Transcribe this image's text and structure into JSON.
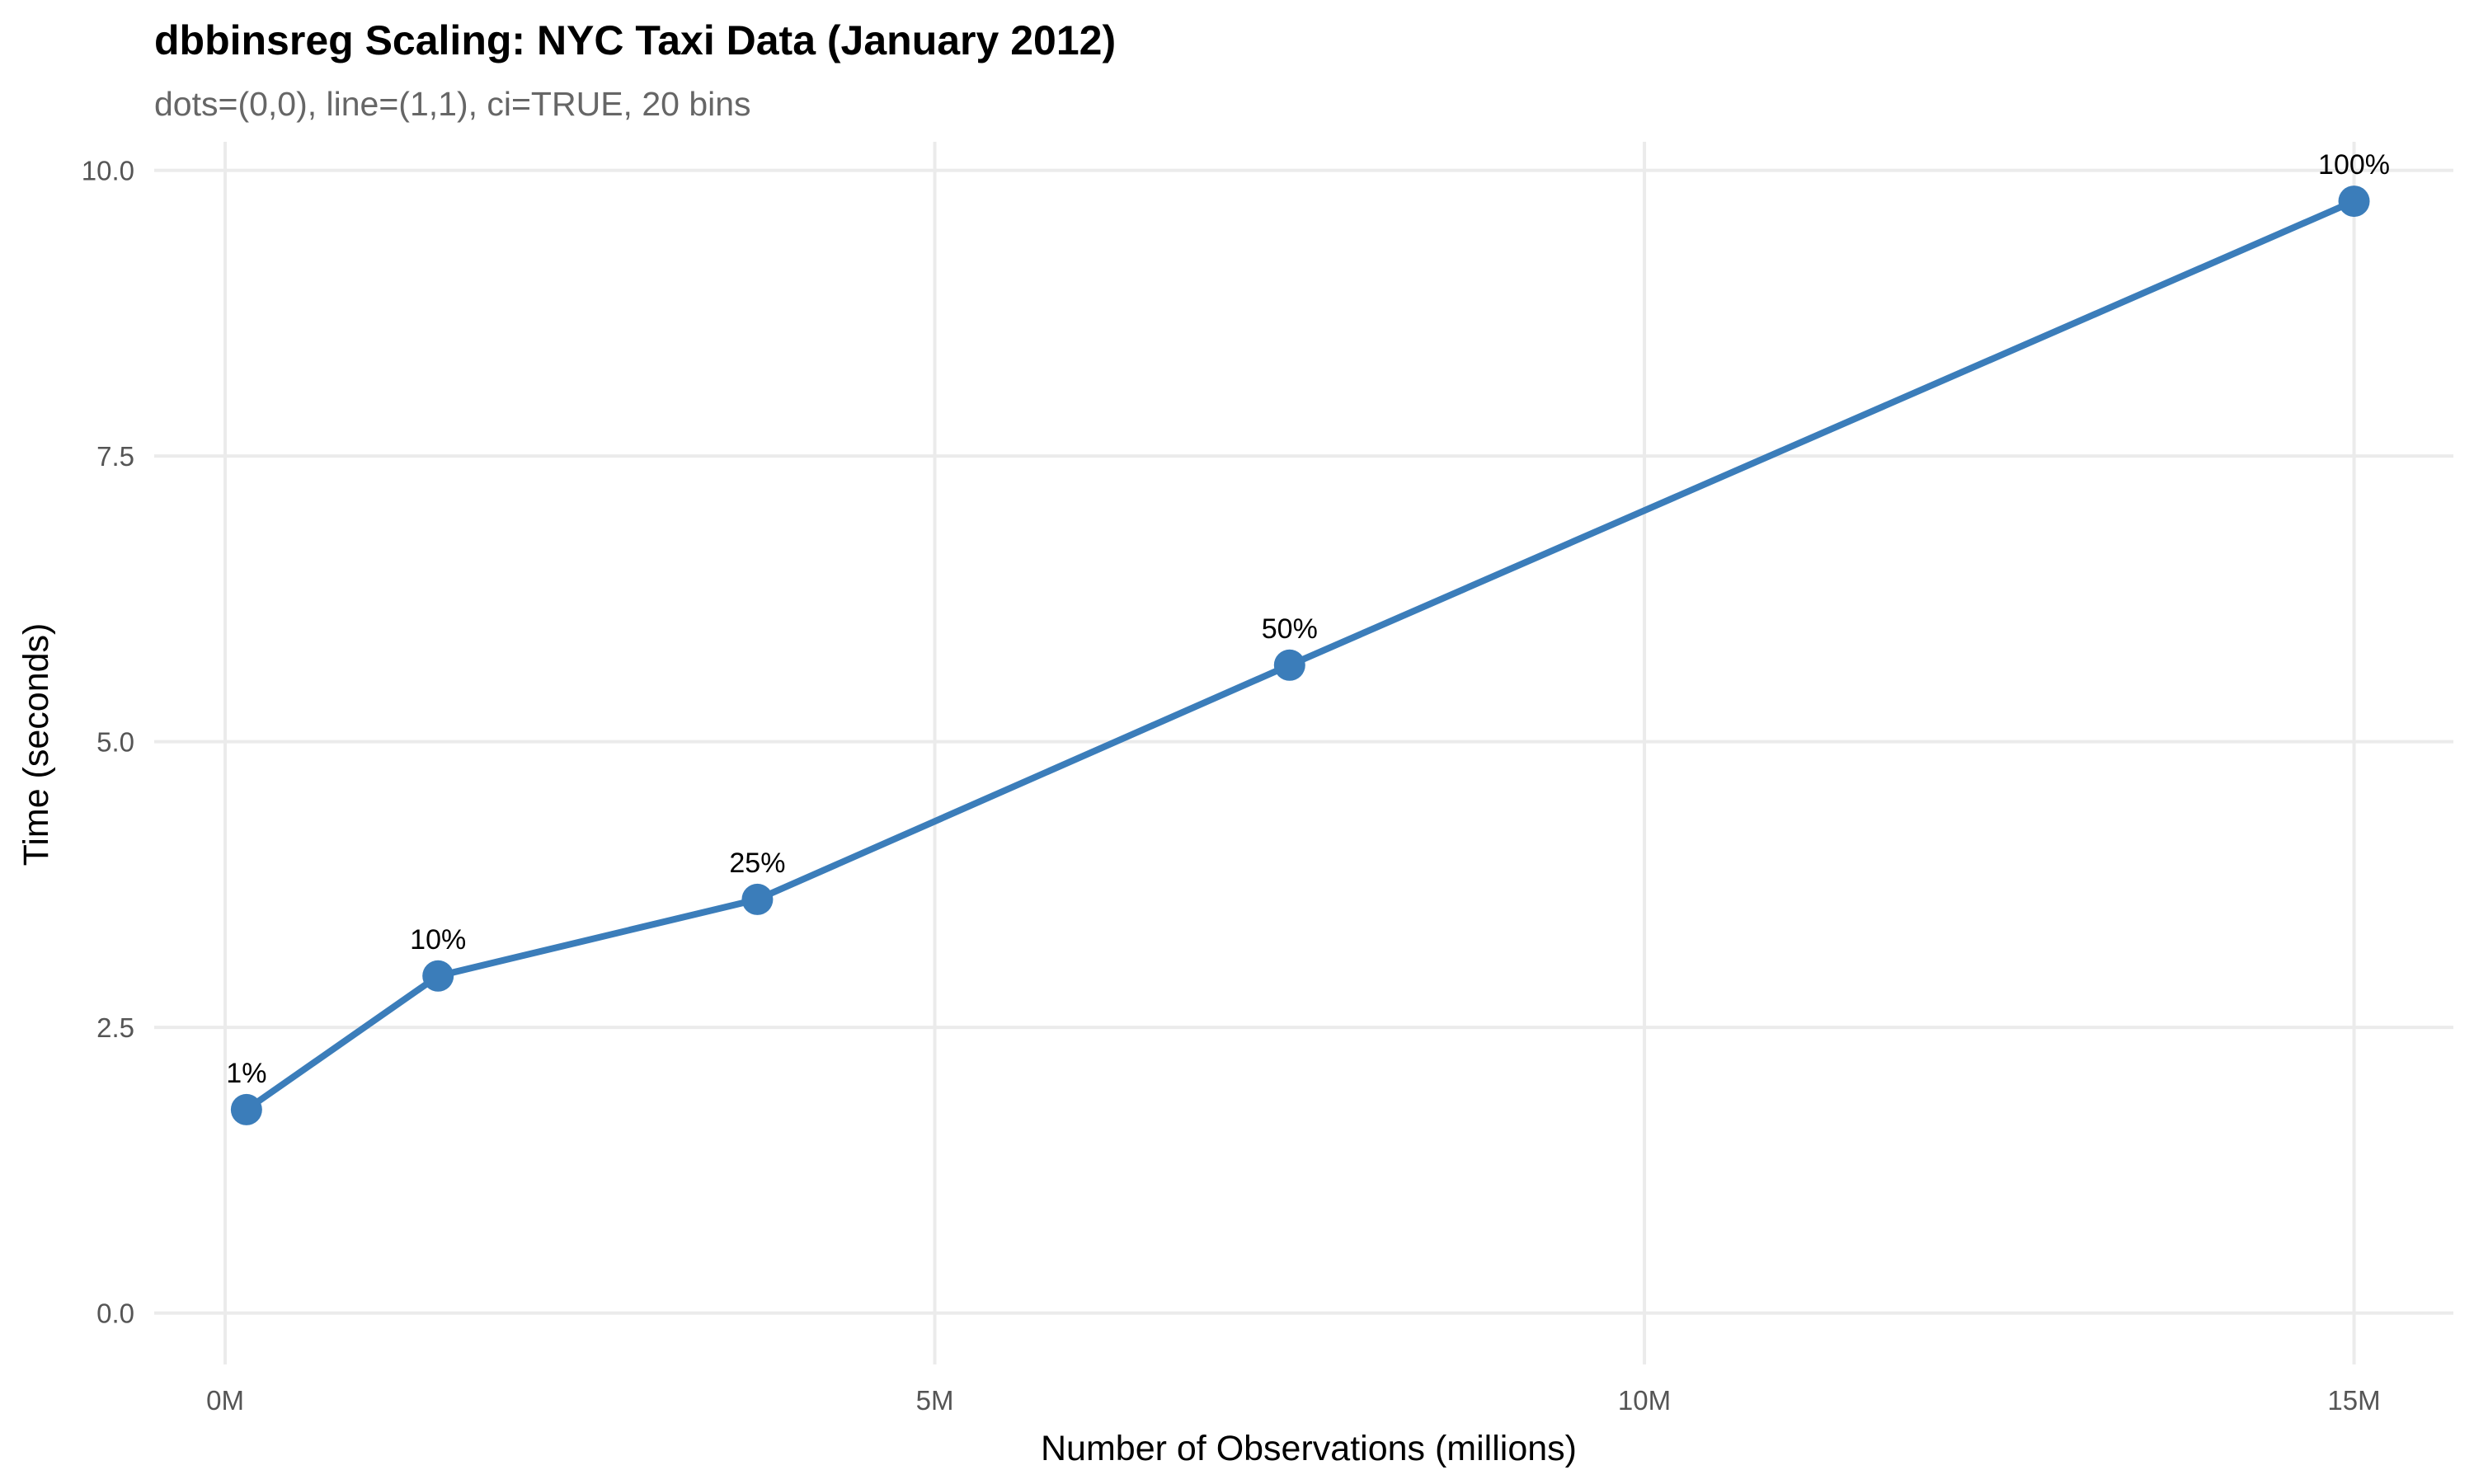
{
  "chart_data": {
    "type": "line",
    "title": "dbbinsreg Scaling: NYC Taxi Data (January 2012)",
    "subtitle": "dots=(0,0), line=(1,1), ci=TRUE, 20 bins",
    "xlabel": "Number of Observations (millions)",
    "ylabel": "Time (seconds)",
    "xlim": [
      -0.5,
      15.7
    ],
    "ylim": [
      -0.45,
      10.25
    ],
    "x_ticks": [
      0,
      5,
      10,
      15
    ],
    "x_tick_labels": [
      "0M",
      "5M",
      "10M",
      "15M"
    ],
    "y_ticks": [
      0,
      2.5,
      5,
      7.5,
      10
    ],
    "y_tick_labels": [
      "0.0",
      "2.5",
      "5.0",
      "7.5",
      "10.0"
    ],
    "grid": true,
    "legend": "none",
    "colors": {
      "line": "#3b7dba",
      "point": "#3b7dba",
      "grid": "#ebebeb"
    },
    "series": [
      {
        "x": [
          0.15,
          1.5,
          3.75,
          7.5,
          15.0
        ],
        "y": [
          1.78,
          2.95,
          3.62,
          5.67,
          9.73
        ],
        "point_labels": [
          "1%",
          "10%",
          "25%",
          "50%",
          "100%"
        ]
      }
    ]
  }
}
